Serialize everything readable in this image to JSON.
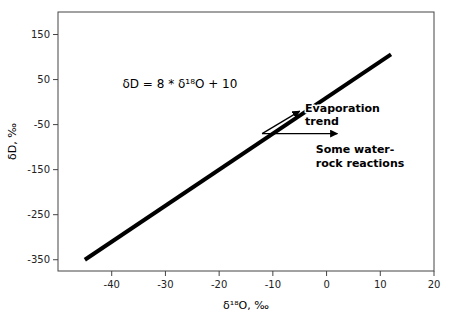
{
  "chart_data": {
    "type": "line",
    "xlabel": "δ¹⁸O, ‰",
    "ylabel": "δD, ‰",
    "xlim": [
      -50,
      20
    ],
    "ylim": [
      -375,
      200
    ],
    "xticks": [
      -40,
      -30,
      -20,
      -10,
      0,
      10,
      20
    ],
    "yticks": [
      -350,
      -250,
      -150,
      -50,
      50,
      150
    ],
    "x": [
      -45,
      12
    ],
    "values": [
      -350,
      106
    ],
    "color": "#000000",
    "grid": false,
    "annotations": [
      {
        "text": "δD = 8 * δ¹⁸O + 10",
        "x": -38,
        "y": 55
      },
      {
        "text": "Evaporation\ntrend",
        "x": -4,
        "y": -28,
        "arrow_from": [
          -12,
          -70
        ],
        "arrow_to": [
          -5,
          -20
        ]
      },
      {
        "text": "Some water-\nrock reactions",
        "x": -2,
        "y": -120,
        "arrow_from": [
          -12,
          -70
        ],
        "arrow_to": [
          2,
          -70
        ]
      }
    ]
  }
}
